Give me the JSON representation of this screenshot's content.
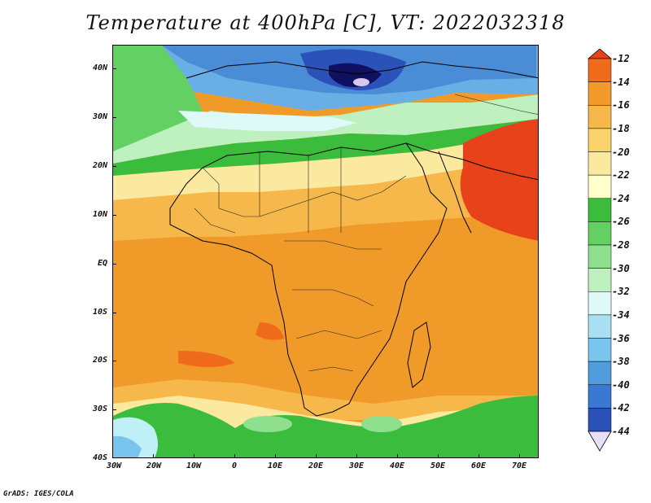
{
  "title": "Temperature at 400hPa [C], VT: 2022032318",
  "footer": "GrADS: IGES/COLA",
  "map": {
    "lon_labels": [
      "30W",
      "20W",
      "10W",
      "0",
      "10E",
      "20E",
      "30E",
      "40E",
      "50E",
      "60E",
      "70E"
    ],
    "lat_labels": [
      "40N",
      "30N",
      "20N",
      "10N",
      "EQ",
      "10S",
      "20S",
      "30S",
      "40S"
    ]
  },
  "colorbar": {
    "labels": [
      "-12",
      "-14",
      "-16",
      "-18",
      "-20",
      "-22",
      "-24",
      "-26",
      "-28",
      "-30",
      "-32",
      "-34",
      "-36",
      "-38",
      "-40",
      "-42",
      "-44"
    ],
    "colors": [
      "#e8421a",
      "#ef6a1a",
      "#f29a2a",
      "#f6b84a",
      "#f9d26c",
      "#fbe9a0",
      "#ffffcc",
      "#3cbc3c",
      "#62d062",
      "#8ee08e",
      "#bff0bf",
      "#dff8f8",
      "#a8dff2",
      "#78c4ec",
      "#509cdc",
      "#3a78d2",
      "#2a52b8",
      "#1c2aa0",
      "#101060",
      "#e8e0f8"
    ]
  },
  "colors": {
    "cold_purple": "#d8c8f0",
    "warm_red": "#e8421a",
    "orange": "#f09a2a",
    "light_orange": "#f6b84a",
    "yellow": "#fbe9a0",
    "green": "#3cbc3c",
    "light_green": "#8ee08e",
    "cyan": "#bff0f8",
    "blue": "#509cdc",
    "dark_blue": "#1c2aa0"
  }
}
